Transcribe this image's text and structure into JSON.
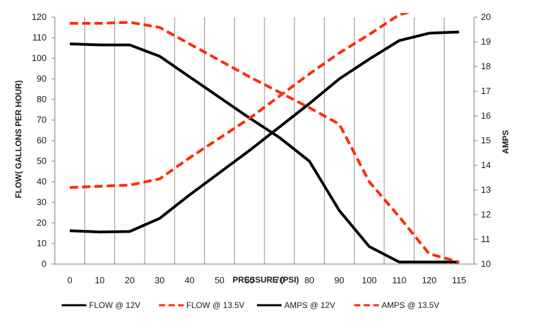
{
  "chart_data": {
    "type": "line",
    "xlabel": "PRESSURE (PSI)",
    "ylabel_left": "FLOW( GALLONS PER HOUR)",
    "ylabel_right": "AMPS",
    "x": [
      0,
      10,
      20,
      30,
      40,
      50,
      60,
      70,
      80,
      90,
      100,
      110,
      120,
      115
    ],
    "x_tick_labels": [
      "0",
      "10",
      "20",
      "30",
      "40",
      "50",
      "60",
      "70",
      "80",
      "90",
      "100",
      "110",
      "120",
      "115"
    ],
    "y_left_ticks": [
      "0",
      "10",
      "20",
      "30",
      "40",
      "50",
      "60",
      "70",
      "80",
      "90",
      "100",
      "110",
      "120"
    ],
    "y_right_ticks": [
      "10",
      "11",
      "12",
      "13",
      "14",
      "15",
      "16",
      "17",
      "18",
      "19",
      "20"
    ],
    "ylim_left": [
      0,
      120
    ],
    "ylim_right": [
      10,
      20
    ],
    "grid": "vertical",
    "legend_position": "bottom",
    "series": [
      {
        "name": "FLOW @ 12V",
        "axis": "left",
        "style": "solid",
        "color": "#000000",
        "values": [
          107,
          106.5,
          106.5,
          101,
          91,
          81,
          71,
          61.5,
          50,
          26,
          8.5,
          1,
          1,
          1
        ]
      },
      {
        "name": "FLOW @ 13.5V",
        "axis": "left",
        "style": "dashed",
        "color": "#ff2a0a",
        "values": [
          117,
          117,
          117.5,
          115,
          107,
          99,
          91,
          83.5,
          76,
          68,
          40,
          23,
          5,
          1
        ]
      },
      {
        "name": "AMPS @ 12V",
        "axis": "right",
        "style": "solid",
        "color": "#000000",
        "values": [
          11.35,
          11.3,
          11.32,
          11.85,
          12.8,
          13.7,
          14.6,
          15.55,
          16.5,
          17.5,
          18.3,
          19.05,
          19.35,
          19.4
        ]
      },
      {
        "name": "AMPS @ 13.5V",
        "axis": "right",
        "style": "dashed",
        "color": "#ff2a0a",
        "values": [
          13.1,
          13.15,
          13.2,
          13.45,
          14.3,
          15.1,
          15.9,
          16.8,
          17.7,
          18.55,
          19.3,
          20.1,
          20.4,
          20.5
        ]
      }
    ]
  }
}
